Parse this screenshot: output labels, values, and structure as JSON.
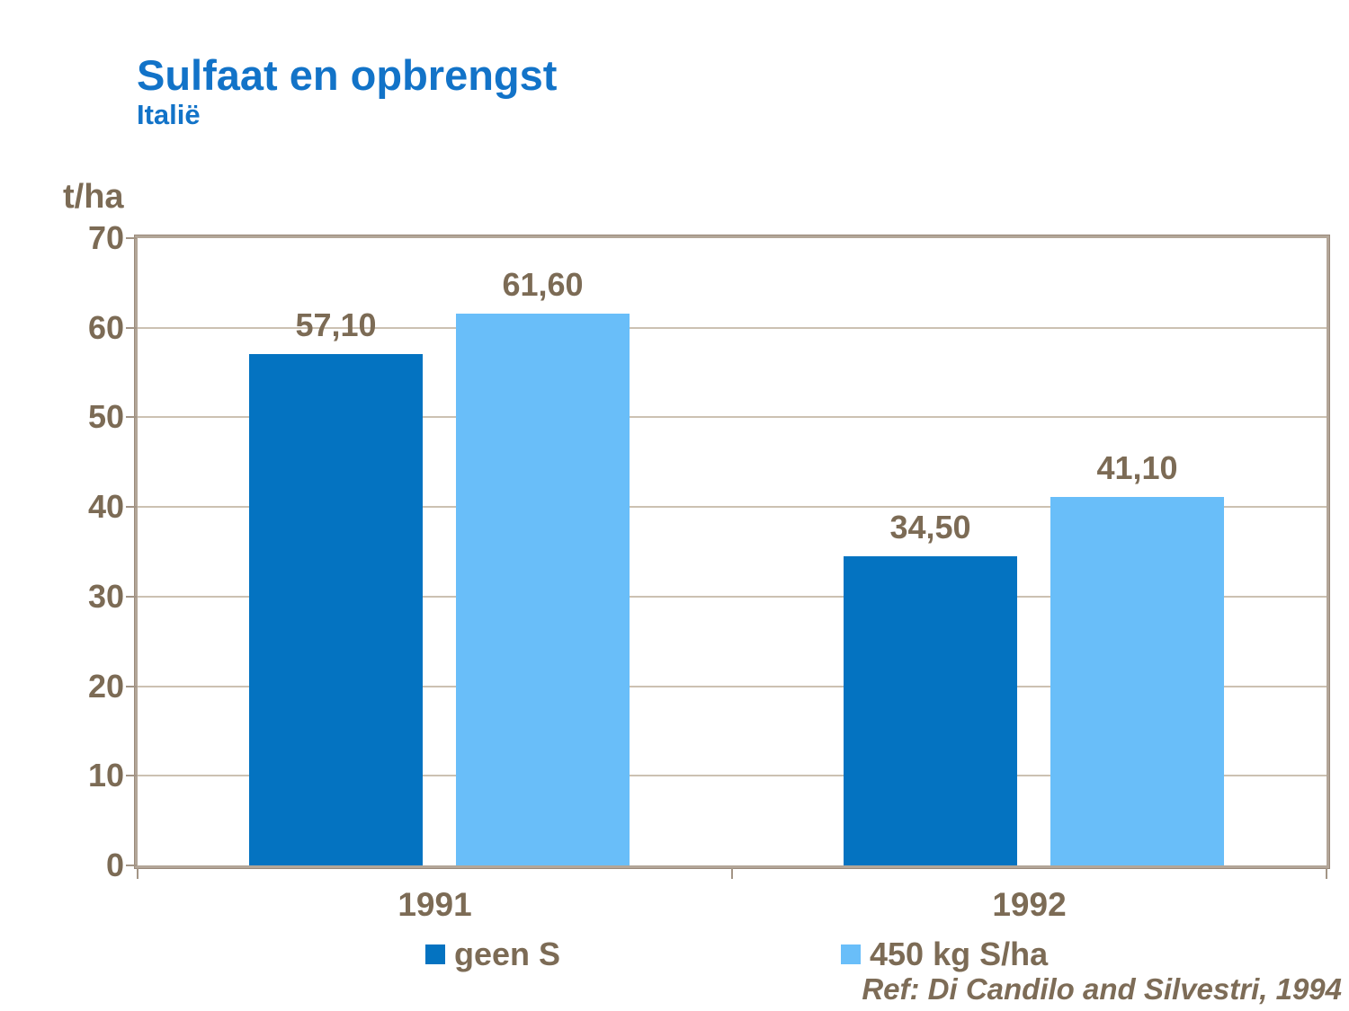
{
  "title": "Sulfaat en opbrengst",
  "subtitle": "Italië",
  "y_axis_unit": "t/ha",
  "reference": "Ref: Di Candilo and Silvestri, 1994",
  "colors": {
    "title_blue": "#1273C8",
    "series1_dark_blue": "#0473C1",
    "series2_light_blue": "#69BEF9",
    "axis_text_brown": "#7C6B55",
    "axis_line_tan": "#B3A698",
    "gridline_tan": "#CCC1B2",
    "background": "#FFFFFF"
  },
  "chart_data": {
    "type": "bar",
    "title": "Sulfaat en opbrengst",
    "subtitle": "Italië",
    "ylabel": "t/ha",
    "ylim": [
      0,
      70
    ],
    "ytick_step": 10,
    "yticks": [
      0,
      10,
      20,
      30,
      40,
      50,
      60,
      70
    ],
    "ytick_labels": [
      "0",
      "10",
      "20",
      "30",
      "40",
      "50",
      "60",
      "70"
    ],
    "grid": true,
    "legend_position": "bottom",
    "categories": [
      "1991",
      "1992"
    ],
    "series": [
      {
        "name": "geen S",
        "values": [
          57.1,
          34.5
        ],
        "value_labels": [
          "57,10",
          "34,50"
        ],
        "color": "#0473C1"
      },
      {
        "name": "450 kg S/ha",
        "values": [
          61.6,
          41.1
        ],
        "value_labels": [
          "61,60",
          "41,10"
        ],
        "color": "#69BEF9"
      }
    ],
    "annotation": "Ref: Di Candilo and Silvestri, 1994"
  }
}
